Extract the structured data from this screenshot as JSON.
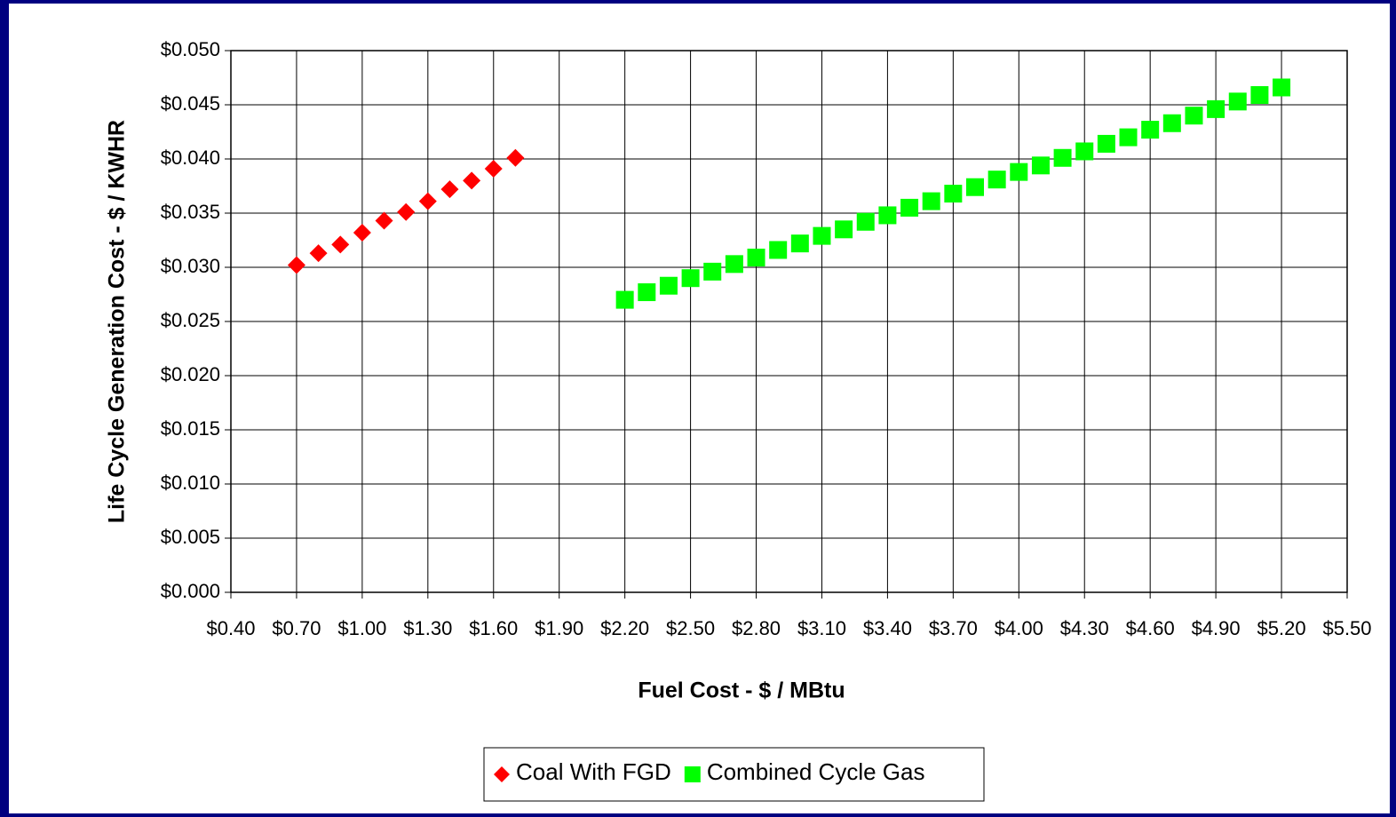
{
  "chart_data": {
    "type": "scatter",
    "xlabel": "Fuel Cost - $ / MBtu",
    "ylabel": "Life Cycle Generation Cost - $ / KWHR",
    "xlim": [
      0.4,
      5.5
    ],
    "ylim": [
      0,
      0.05
    ],
    "xticks": [
      {
        "value": 0.4,
        "label": "$0.40"
      },
      {
        "value": 0.7,
        "label": "$0.70"
      },
      {
        "value": 1.0,
        "label": "$1.00"
      },
      {
        "value": 1.3,
        "label": "$1.30"
      },
      {
        "value": 1.6,
        "label": "$1.60"
      },
      {
        "value": 1.9,
        "label": "$1.90"
      },
      {
        "value": 2.2,
        "label": "$2.20"
      },
      {
        "value": 2.5,
        "label": "$2.50"
      },
      {
        "value": 2.8,
        "label": "$2.80"
      },
      {
        "value": 3.1,
        "label": "$3.10"
      },
      {
        "value": 3.4,
        "label": "$3.40"
      },
      {
        "value": 3.7,
        "label": "$3.70"
      },
      {
        "value": 4.0,
        "label": "$4.00"
      },
      {
        "value": 4.3,
        "label": "$4.30"
      },
      {
        "value": 4.6,
        "label": "$4.60"
      },
      {
        "value": 4.9,
        "label": "$4.90"
      },
      {
        "value": 5.2,
        "label": "$5.20"
      },
      {
        "value": 5.5,
        "label": "$5.50"
      }
    ],
    "yticks": [
      {
        "value": 0,
        "label": "$0.000"
      },
      {
        "value": 0.005,
        "label": "$0.005"
      },
      {
        "value": 0.01,
        "label": "$0.010"
      },
      {
        "value": 0.015,
        "label": "$0.015"
      },
      {
        "value": 0.02,
        "label": "$0.020"
      },
      {
        "value": 0.025,
        "label": "$0.025"
      },
      {
        "value": 0.03,
        "label": "$0.030"
      },
      {
        "value": 0.035,
        "label": "$0.035"
      },
      {
        "value": 0.04,
        "label": "$0.040"
      },
      {
        "value": 0.045,
        "label": "$0.045"
      },
      {
        "value": 0.05,
        "label": "$0.050"
      }
    ],
    "grid": true,
    "legend": "bottom",
    "series": [
      {
        "name": "Coal With FGD",
        "color": "#ff0000",
        "marker": "diamond",
        "x": [
          0.7,
          0.8,
          0.9,
          1.0,
          1.1,
          1.2,
          1.3,
          1.4,
          1.5,
          1.6,
          1.7
        ],
        "values": [
          0.0302,
          0.0313,
          0.0321,
          0.0332,
          0.0343,
          0.0351,
          0.0361,
          0.0372,
          0.038,
          0.0391,
          0.0401
        ]
      },
      {
        "name": "Combined Cycle Gas",
        "color": "#00ff00",
        "marker": "square",
        "x": [
          2.2,
          2.3,
          2.4,
          2.5,
          2.6,
          2.7,
          2.8,
          2.9,
          3.0,
          3.1,
          3.2,
          3.3,
          3.4,
          3.5,
          3.6,
          3.7,
          3.8,
          3.9,
          4.0,
          4.1,
          4.2,
          4.3,
          4.4,
          4.5,
          4.6,
          4.7,
          4.8,
          4.9,
          5.0,
          5.1,
          5.2
        ],
        "values": [
          0.027,
          0.0277,
          0.0283,
          0.029,
          0.0296,
          0.0303,
          0.0309,
          0.0316,
          0.0322,
          0.0329,
          0.0335,
          0.0342,
          0.0348,
          0.0355,
          0.0361,
          0.0368,
          0.0374,
          0.0381,
          0.0388,
          0.0394,
          0.0401,
          0.0407,
          0.0414,
          0.042,
          0.0427,
          0.0433,
          0.044,
          0.0446,
          0.0453,
          0.0459,
          0.0466
        ]
      }
    ]
  }
}
